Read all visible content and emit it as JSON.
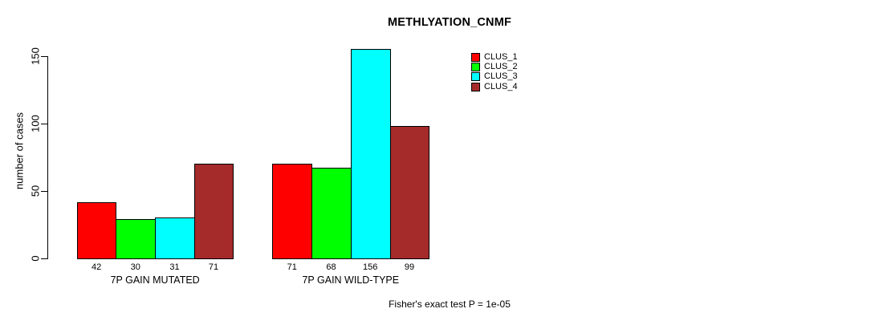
{
  "title": "METHLYATION_CNMF",
  "chart_data": {
    "type": "bar",
    "title": "METHLYATION_CNMF",
    "ylabel": "number of cases",
    "xlabel": "",
    "yticks": [
      0,
      50,
      100,
      150
    ],
    "ylim": [
      0,
      160
    ],
    "grid": false,
    "legend_position": "top-right",
    "categories": [
      "7P GAIN MUTATED",
      "7P GAIN WILD-TYPE"
    ],
    "series": [
      {
        "name": "CLUS_1",
        "color": "#FF0000",
        "values": [
          42,
          71
        ]
      },
      {
        "name": "CLUS_2",
        "color": "#00FF00",
        "values": [
          30,
          68
        ]
      },
      {
        "name": "CLUS_3",
        "color": "#00FFFF",
        "values": [
          31,
          156
        ]
      },
      {
        "name": "CLUS_4",
        "color": "#A52A2A",
        "values": [
          71,
          99
        ]
      }
    ],
    "annotation": "Fisher's exact test P = 1e-05"
  }
}
